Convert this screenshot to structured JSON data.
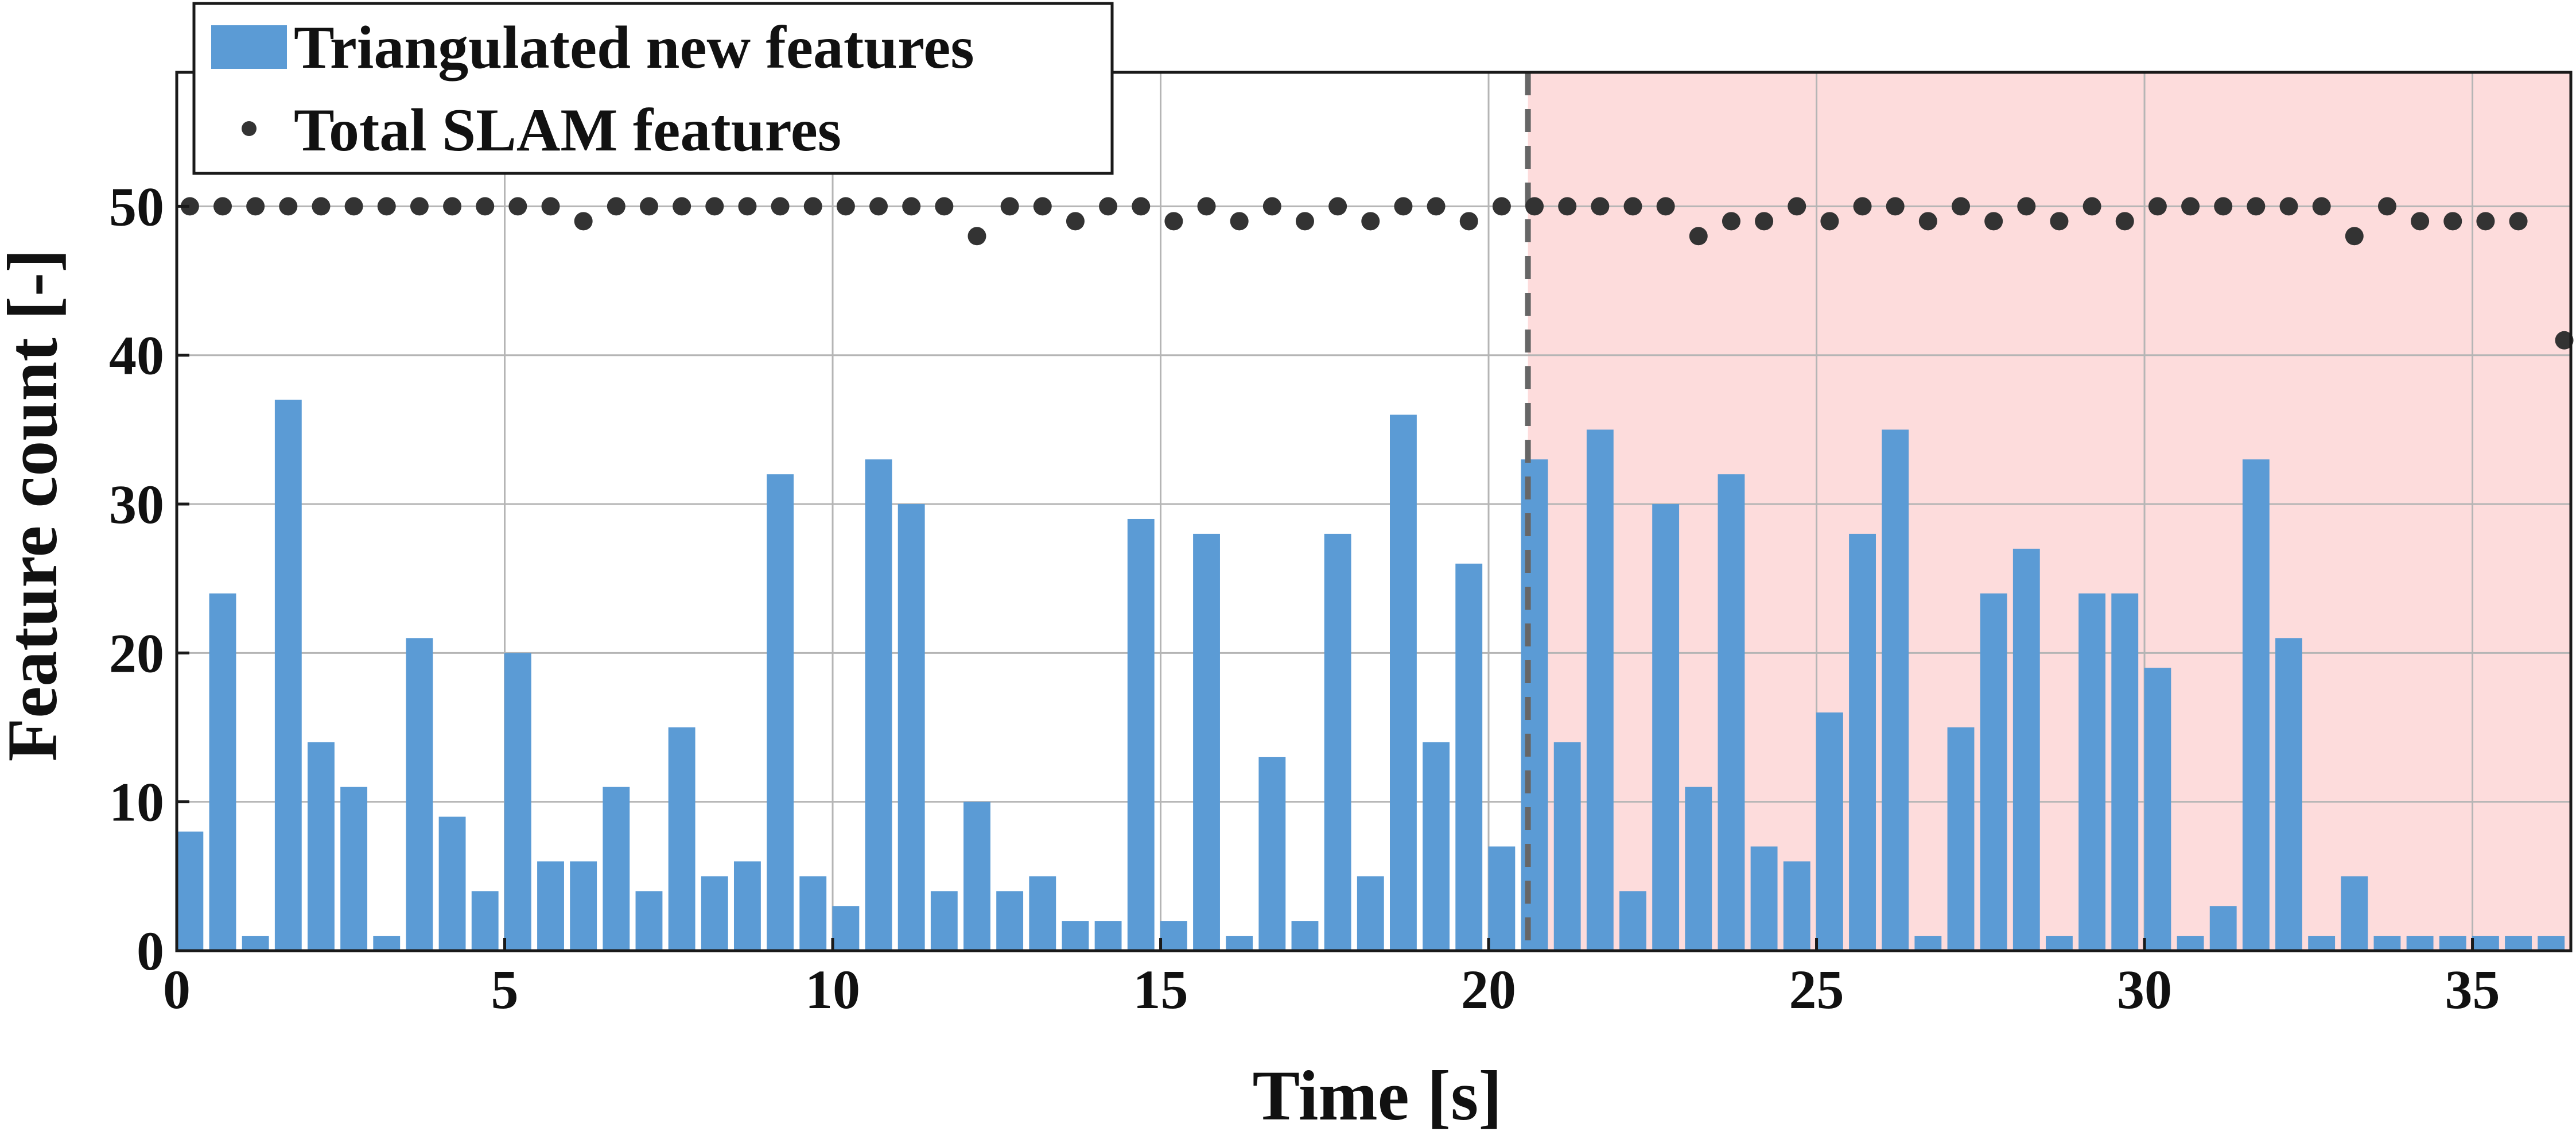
{
  "chart_data": {
    "type": "bar",
    "xlabel": "Time [s]",
    "ylabel": "Feature count [-]",
    "xlim": [
      0,
      36.5
    ],
    "ylim": [
      0,
      59
    ],
    "xticks": [
      0,
      5,
      10,
      15,
      20,
      25,
      30,
      35
    ],
    "yticks": [
      0,
      10,
      20,
      30,
      40,
      50
    ],
    "xtick_labels": [
      "0",
      "5",
      "10",
      "15",
      "20",
      "25",
      "30",
      "35"
    ],
    "ytick_labels": [
      "0",
      "10",
      "20",
      "30",
      "40",
      "50"
    ],
    "grid": true,
    "legend_position": "top-left",
    "legend": [
      {
        "label": "Triangulated new features",
        "marker": "bar"
      },
      {
        "label": "Total SLAM features",
        "marker": "dot"
      }
    ],
    "shaded_region": {
      "x_start": 20.6,
      "x_end": 36.5,
      "color": "#fddcdc"
    },
    "vertical_line": {
      "x": 20.6,
      "style": "dashed",
      "color": "#666666"
    },
    "colors": {
      "bar": "#5b9bd5",
      "dot": "#333333"
    },
    "series": [
      {
        "name": "Triangulated new features",
        "kind": "bar",
        "x": [
          0.2,
          0.7,
          1.2,
          1.7,
          2.2,
          2.7,
          3.2,
          3.7,
          4.2,
          4.7,
          5.2,
          5.7,
          6.2,
          6.7,
          7.2,
          7.7,
          8.2,
          8.7,
          9.2,
          9.7,
          10.2,
          10.7,
          11.2,
          11.7,
          12.2,
          12.7,
          13.2,
          13.7,
          14.2,
          14.7,
          15.2,
          15.7,
          16.2,
          16.7,
          17.2,
          17.7,
          18.2,
          18.7,
          19.2,
          19.7,
          20.2,
          20.7,
          21.2,
          21.7,
          22.2,
          22.7,
          23.2,
          23.7,
          24.2,
          24.7,
          25.2,
          25.7,
          26.2,
          26.7,
          27.2,
          27.7,
          28.2,
          28.7,
          29.2,
          29.7,
          30.2,
          30.7,
          31.2,
          31.7,
          32.2,
          32.7,
          33.2,
          33.7,
          34.2,
          34.7,
          35.2,
          35.7,
          36.2
        ],
        "y": [
          8,
          24,
          1,
          37,
          14,
          11,
          1,
          21,
          9,
          4,
          20,
          6,
          6,
          11,
          4,
          15,
          5,
          6,
          32,
          5,
          3,
          33,
          30,
          4,
          10,
          4,
          5,
          2,
          2,
          29,
          2,
          28,
          1,
          13,
          2,
          28,
          5,
          36,
          14,
          26,
          7,
          33,
          14,
          35,
          4,
          30,
          11,
          32,
          7,
          6,
          16,
          28,
          35,
          1,
          15,
          24,
          27,
          1,
          24,
          24,
          19,
          1,
          3,
          33,
          21,
          1,
          5,
          1,
          1,
          1,
          1,
          1,
          1
        ]
      },
      {
        "name": "Total SLAM features",
        "kind": "scatter",
        "x": [
          0.2,
          0.7,
          1.2,
          1.7,
          2.2,
          2.7,
          3.2,
          3.7,
          4.2,
          4.7,
          5.2,
          5.7,
          6.2,
          6.7,
          7.2,
          7.7,
          8.2,
          8.7,
          9.2,
          9.7,
          10.2,
          10.7,
          11.2,
          11.7,
          12.2,
          12.7,
          13.2,
          13.7,
          14.2,
          14.7,
          15.2,
          15.7,
          16.2,
          16.7,
          17.2,
          17.7,
          18.2,
          18.7,
          19.2,
          19.7,
          20.2,
          20.7,
          21.2,
          21.7,
          22.2,
          22.7,
          23.2,
          23.7,
          24.2,
          24.7,
          25.2,
          25.7,
          26.2,
          26.7,
          27.2,
          27.7,
          28.2,
          28.7,
          29.2,
          29.7,
          30.2,
          30.7,
          31.2,
          31.7,
          32.2,
          32.7,
          33.2,
          33.7,
          34.2,
          34.7,
          35.2,
          35.7,
          36.4
        ],
        "y": [
          50,
          50,
          50,
          50,
          50,
          50,
          50,
          50,
          50,
          50,
          50,
          50,
          49,
          50,
          50,
          50,
          50,
          50,
          50,
          50,
          50,
          50,
          50,
          50,
          48,
          50,
          50,
          49,
          50,
          50,
          49,
          50,
          49,
          50,
          49,
          50,
          49,
          50,
          50,
          49,
          50,
          50,
          50,
          50,
          50,
          50,
          48,
          49,
          49,
          50,
          49,
          50,
          50,
          49,
          50,
          49,
          50,
          49,
          50,
          49,
          50,
          50,
          50,
          50,
          50,
          50,
          48,
          50,
          49,
          49,
          49,
          49,
          41
        ]
      }
    ]
  }
}
